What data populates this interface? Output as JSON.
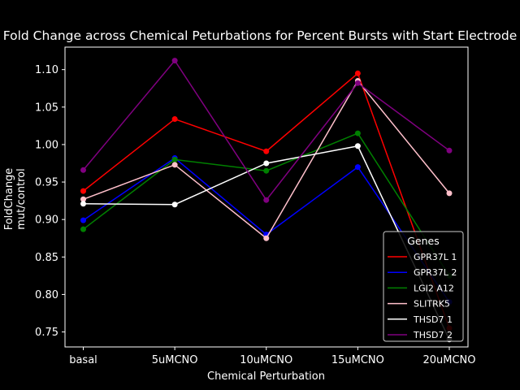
{
  "chart_data": {
    "type": "line",
    "title": "Fold Change across Chemical Peturbations for Percent Bursts with Start Electrode",
    "xlabel": "Chemical Perturbation",
    "ylabel": [
      "FoldChange",
      "mut/control"
    ],
    "categories": [
      "basal",
      "5uMCNO",
      "10uMCNO",
      "15uMCNO",
      "20uMCNO"
    ],
    "ylim": [
      0.73,
      1.13
    ],
    "yticks": [
      0.75,
      0.8,
      0.85,
      0.9,
      0.95,
      1.0,
      1.05,
      1.1
    ],
    "ytick_labels": [
      "0.75",
      "0.80",
      "0.85",
      "0.90",
      "0.95",
      "1.00",
      "1.05",
      "1.10"
    ],
    "grid": false,
    "legend": {
      "title": "Genes",
      "placement": "lower-right"
    },
    "series": [
      {
        "name": "GPR37L 1",
        "color": "#ff0000",
        "values": [
          0.938,
          1.034,
          0.991,
          1.095,
          0.755
        ]
      },
      {
        "name": "GPR37L 2",
        "color": "#0000ff",
        "values": [
          0.899,
          0.982,
          0.88,
          0.97,
          0.79
        ]
      },
      {
        "name": "LGI2 A12",
        "color": "#008000",
        "values": [
          0.887,
          0.98,
          0.965,
          1.015,
          0.825
        ]
      },
      {
        "name": "SLITRK5",
        "color": "#ffc0cb",
        "values": [
          0.927,
          0.973,
          0.875,
          1.085,
          0.935
        ]
      },
      {
        "name": "THSD7 1",
        "color": "#ffffff",
        "values": [
          0.921,
          0.92,
          0.975,
          0.998,
          0.74
        ]
      },
      {
        "name": "THSD7 2",
        "color": "#800080",
        "values": [
          0.966,
          1.112,
          0.926,
          1.082,
          0.992
        ]
      }
    ]
  }
}
